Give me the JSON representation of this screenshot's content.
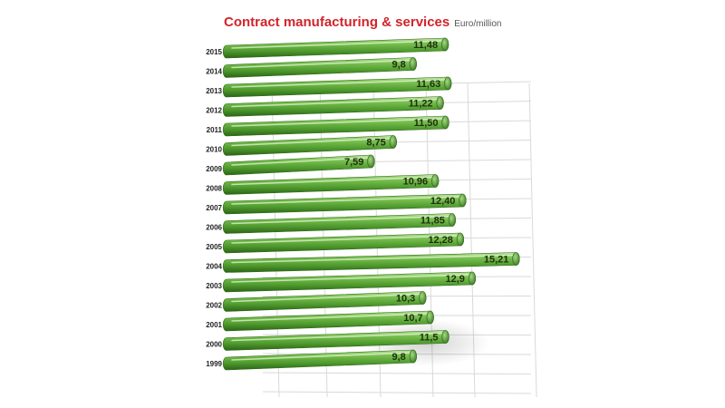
{
  "chart_data": {
    "type": "bar",
    "orientation": "horizontal",
    "title": "Contract manufacturing & services",
    "unit_label": "Euro/million",
    "categories": [
      "2015",
      "2014",
      "2013",
      "2012",
      "2011",
      "2010",
      "2009",
      "2008",
      "2007",
      "2006",
      "2005",
      "2004",
      "2003",
      "2002",
      "2001",
      "2000",
      "1999"
    ],
    "values": [
      11.48,
      9.8,
      11.63,
      11.22,
      11.5,
      8.75,
      7.59,
      10.96,
      12.4,
      11.85,
      12.28,
      15.21,
      12.9,
      10.3,
      10.7,
      11.5,
      9.8
    ],
    "value_labels": [
      "11,48",
      "9,8",
      "11,63",
      "11,22",
      "11,50",
      "8,75",
      "7,59",
      "10,96",
      "12,40",
      "11,85",
      "12,28",
      "15,21",
      "12,9",
      "10,3",
      "10,7",
      "11,5",
      "9,8"
    ],
    "xlim": [
      0,
      16
    ],
    "grid": true,
    "legend": "none",
    "colors": {
      "bar": "#5fae3c",
      "bar_light": "#a8d88a",
      "bar_dark": "#2f6e1c",
      "title": "#d2232a"
    }
  }
}
